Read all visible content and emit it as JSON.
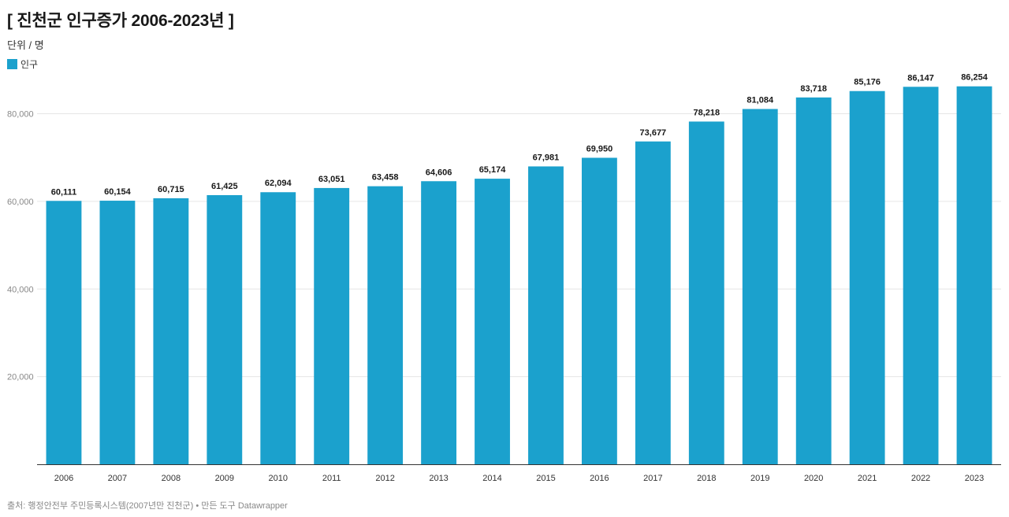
{
  "header": {
    "title": "[ 진천군 인구증가 2006-2023년 ]",
    "subtitle": "단위 / 명"
  },
  "legend": {
    "label": "인구",
    "color": "#1ba1cd"
  },
  "footer": {
    "text": "출처: 행정안전부 주민등록시스템(2007년만 진천군) • 만든 도구 Datawrapper"
  },
  "chart_data": {
    "type": "bar",
    "title": "[ 진천군 인구증가 2006-2023년 ]",
    "ylabel": "",
    "xlabel": "",
    "ylim": [
      0,
      88000
    ],
    "yticks": [
      20000,
      40000,
      60000,
      80000
    ],
    "ytick_labels": [
      "20,000",
      "40,000",
      "60,000",
      "80,000"
    ],
    "grid": true,
    "legend_position": "top-left",
    "categories": [
      "2006",
      "2007",
      "2008",
      "2009",
      "2010",
      "2011",
      "2012",
      "2013",
      "2014",
      "2015",
      "2016",
      "2017",
      "2018",
      "2019",
      "2020",
      "2021",
      "2022",
      "2023"
    ],
    "series": [
      {
        "name": "인구",
        "color": "#1ba1cd",
        "values": [
          60111,
          60154,
          60715,
          61425,
          62094,
          63051,
          63458,
          64606,
          65174,
          67981,
          69950,
          73677,
          78218,
          81084,
          83718,
          85176,
          86147,
          86254
        ],
        "labels": [
          "60,111",
          "60,154",
          "60,715",
          "61,425",
          "62,094",
          "63,051",
          "63,458",
          "64,606",
          "65,174",
          "67,981",
          "69,950",
          "73,677",
          "78,218",
          "81,084",
          "83,718",
          "85,176",
          "86,147",
          "86,254"
        ]
      }
    ]
  }
}
